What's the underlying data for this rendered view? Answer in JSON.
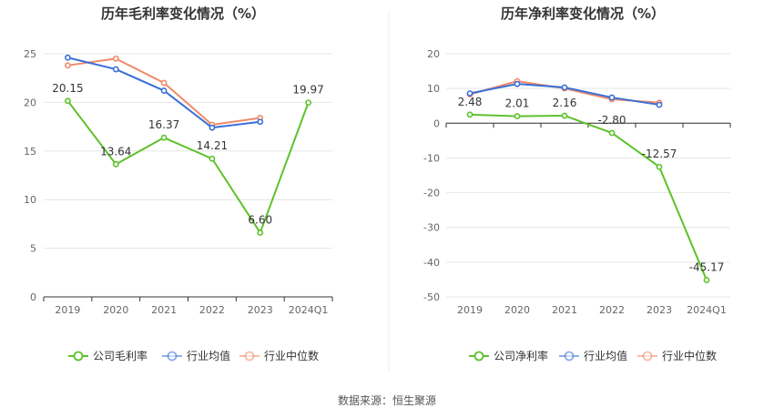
{
  "colors": {
    "company": "#5ec12a",
    "industry_avg": "#3a6fd8",
    "industry_median": "#f08a67",
    "grid": "#e6e6e6",
    "axis_text": "#666666"
  },
  "chart_data": [
    {
      "type": "line",
      "title": "历年毛利率变化情况（%）",
      "categories": [
        "2019",
        "2020",
        "2021",
        "2022",
        "2023",
        "2024Q1"
      ],
      "ylim": [
        0,
        25
      ],
      "yticks": [
        0,
        5,
        10,
        15,
        20,
        25
      ],
      "grid": true,
      "legend_position": "bottom",
      "series": [
        {
          "name": "公司毛利率",
          "key": "company",
          "values": [
            20.15,
            13.64,
            16.37,
            14.21,
            6.6,
            19.97
          ],
          "labels": [
            "20.15",
            "13.64",
            "16.37",
            "14.21",
            "6.60",
            "19.97"
          ]
        },
        {
          "name": "行业均值",
          "key": "industry_avg",
          "values": [
            24.6,
            23.4,
            21.2,
            17.4,
            18.0,
            null
          ]
        },
        {
          "name": "行业中位数",
          "key": "industry_median",
          "values": [
            23.8,
            24.5,
            22.0,
            17.7,
            18.4,
            null
          ]
        }
      ]
    },
    {
      "type": "line",
      "title": "历年净利率变化情况（%）",
      "categories": [
        "2019",
        "2020",
        "2021",
        "2022",
        "2023",
        "2024Q1"
      ],
      "ylim": [
        -50,
        20
      ],
      "yticks": [
        -50,
        -40,
        -30,
        -20,
        -10,
        0,
        10,
        20
      ],
      "grid": true,
      "legend_position": "bottom",
      "series": [
        {
          "name": "公司净利率",
          "key": "company",
          "values": [
            2.48,
            2.01,
            2.16,
            -2.8,
            -12.57,
            -45.17
          ],
          "labels": [
            "2.48",
            "2.01",
            "2.16",
            "-2.80",
            "-12.57",
            "-45.17"
          ]
        },
        {
          "name": "行业均值",
          "key": "industry_avg",
          "values": [
            8.6,
            11.3,
            10.3,
            7.4,
            5.3,
            null
          ]
        },
        {
          "name": "行业中位数",
          "key": "industry_median",
          "values": [
            8.3,
            12.1,
            10.0,
            6.9,
            5.9,
            null
          ]
        }
      ]
    }
  ],
  "footer": {
    "source": "数据来源：恒生聚源"
  }
}
